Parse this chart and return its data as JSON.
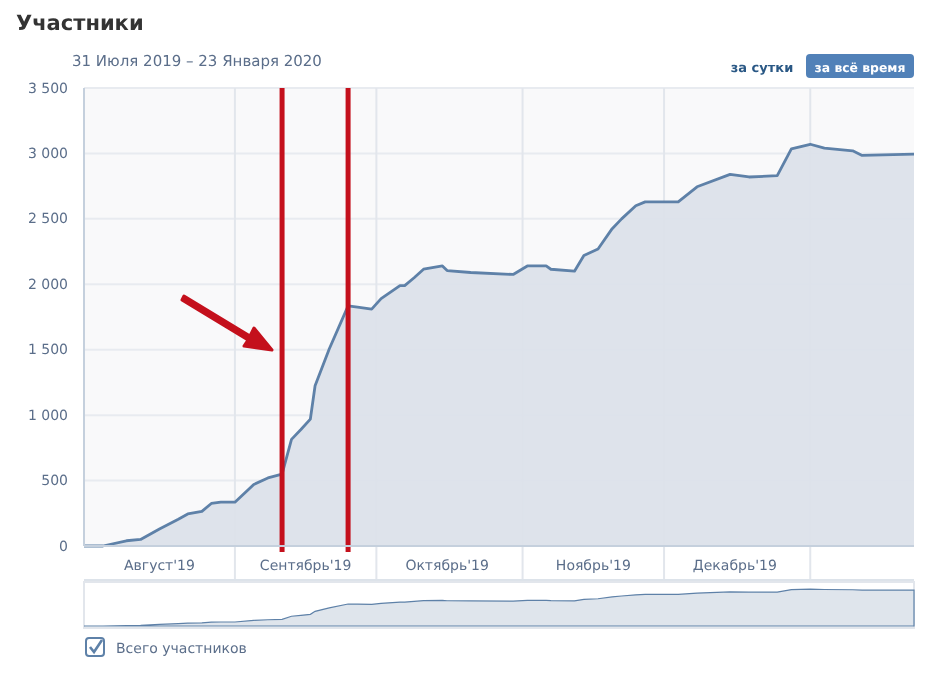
{
  "chart_data": {
    "type": "area",
    "title": "Участники",
    "subtitle": "31 Июля 2019 – 23 Января 2020",
    "annotations": [
      "за сутки",
      "за всё время"
    ],
    "x": [
      "2019-07-31",
      "2019-08-04",
      "2019-08-09",
      "2019-08-12",
      "2019-08-16",
      "2019-08-20",
      "2019-08-22",
      "2019-08-25",
      "2019-08-27",
      "2019-08-29",
      "2019-09-01",
      "2019-09-05",
      "2019-09-08",
      "2019-09-11",
      "2019-09-13",
      "2019-09-15",
      "2019-09-17",
      "2019-09-18",
      "2019-09-21",
      "2019-09-25",
      "2019-09-27",
      "2019-09-30",
      "2019-10-02",
      "2019-10-06",
      "2019-10-07",
      "2019-10-09",
      "2019-10-11",
      "2019-10-15",
      "2019-10-16",
      "2019-10-21",
      "2019-10-30",
      "2019-11-02",
      "2019-11-06",
      "2019-11-07",
      "2019-11-12",
      "2019-11-14",
      "2019-11-17",
      "2019-11-20",
      "2019-11-22",
      "2019-11-25",
      "2019-11-27",
      "2019-12-04",
      "2019-12-08",
      "2019-12-15",
      "2019-12-19",
      "2019-12-25",
      "2019-12-28",
      "2020-01-01",
      "2020-01-04",
      "2020-01-10",
      "2020-01-12",
      "2020-01-23"
    ],
    "series": [
      {
        "name": "Всего участников",
        "color": "#5e81a8",
        "values": [
          0,
          0,
          40,
          50,
          130,
          205,
          245,
          265,
          325,
          335,
          335,
          470,
          520,
          550,
          815,
          890,
          970,
          1225,
          1505,
          1835,
          1825,
          1810,
          1890,
          1990,
          1990,
          2050,
          2115,
          2140,
          2105,
          2090,
          2075,
          2140,
          2140,
          2115,
          2100,
          2220,
          2270,
          2425,
          2500,
          2600,
          2630,
          2630,
          2745,
          2840,
          2820,
          2830,
          3035,
          3070,
          3040,
          3020,
          2985,
          2995
        ]
      }
    ],
    "xlim": [
      "2019-07-31",
      "2020-01-23"
    ],
    "xticks": [
      {
        "value": "2019-08-16",
        "label": "Август'19"
      },
      {
        "value": "2019-09-01",
        "label": null
      },
      {
        "value": "2019-09-16",
        "label": "Сентябрь'19"
      },
      {
        "value": "2019-10-01",
        "label": null
      },
      {
        "value": "2019-10-16",
        "label": "Октябрь'19"
      },
      {
        "value": "2019-11-01",
        "label": null
      },
      {
        "value": "2019-11-16",
        "label": "Ноябрь'19"
      },
      {
        "value": "2019-12-01",
        "label": null
      },
      {
        "value": "2019-12-16",
        "label": "Декабрь'19"
      },
      {
        "value": "2020-01-01",
        "label": null
      }
    ],
    "ylim": [
      0,
      3500
    ],
    "yticks": [
      0,
      500,
      {
        "value": 1000,
        "label": "1 000"
      },
      {
        "value": 1500,
        "label": "1 500"
      },
      {
        "value": 2000,
        "label": "2 000"
      },
      {
        "value": 2500,
        "label": "2 500"
      },
      {
        "value": 3000,
        "label": "3 000"
      },
      {
        "value": 3500,
        "label": "3 500"
      }
    ],
    "ref_lines": [
      {
        "axis": "x",
        "value": "2019-09-11",
        "color": "#c4101c"
      },
      {
        "axis": "x",
        "value": "2019-09-25",
        "color": "#c4101c"
      }
    ],
    "grid": true,
    "legend": "bottom left",
    "marker": "none",
    "line_style": "solid"
  }
}
